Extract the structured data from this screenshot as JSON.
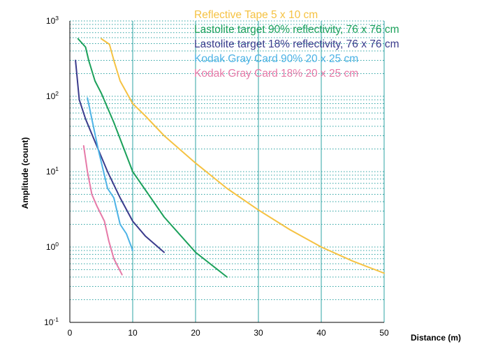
{
  "chart_data": {
    "type": "line",
    "xlabel": "Distance (m)",
    "ylabel": "Amplitude (count)",
    "xlim": [
      0,
      50
    ],
    "ylim": [
      0.1,
      1000
    ],
    "y_scale": "log",
    "x_ticks": [
      "0",
      "10",
      "20",
      "30",
      "40",
      "50"
    ],
    "y_ticks": [
      {
        "base": "10",
        "exp": "-1"
      },
      {
        "base": "10",
        "exp": "0"
      },
      {
        "base": "10",
        "exp": "1"
      },
      {
        "base": "10",
        "exp": "2"
      },
      {
        "base": "10",
        "exp": "3"
      }
    ],
    "grid": "dotted teal, log minor horizontal lines, vertical lines at 10-unit ticks",
    "grid_color": "#2ea3a3",
    "legend_position": "top-right",
    "series": [
      {
        "name": "Reflective Tape 5 x 10 cm",
        "color": "#f5c242",
        "points": [
          [
            5,
            580
          ],
          [
            6.3,
            490
          ],
          [
            7,
            300
          ],
          [
            8,
            160
          ],
          [
            10,
            80
          ],
          [
            12,
            55
          ],
          [
            15,
            30
          ],
          [
            20,
            13
          ],
          [
            25,
            6
          ],
          [
            30,
            3.1
          ],
          [
            35,
            1.7
          ],
          [
            40,
            1.0
          ],
          [
            45,
            0.65
          ],
          [
            50,
            0.45
          ]
        ]
      },
      {
        "name": "Lastolite target 90% reflectivity, 76 x 76 cm",
        "color": "#1aa05a",
        "points": [
          [
            1.3,
            580
          ],
          [
            2.5,
            450
          ],
          [
            3,
            300
          ],
          [
            4,
            160
          ],
          [
            5,
            110
          ],
          [
            7,
            45
          ],
          [
            10,
            10
          ],
          [
            15,
            2.5
          ],
          [
            20,
            0.85
          ],
          [
            25,
            0.4
          ]
        ]
      },
      {
        "name": "Lastolite target 18% reflectivity, 76 x 76 cm",
        "color": "#3a3b8c",
        "points": [
          [
            0.9,
            300
          ],
          [
            1.5,
            90
          ],
          [
            2.5,
            50
          ],
          [
            4,
            25
          ],
          [
            6,
            10
          ],
          [
            8,
            4.5
          ],
          [
            10,
            2.2
          ],
          [
            12,
            1.4
          ],
          [
            15,
            0.85
          ]
        ]
      },
      {
        "name": "Kodak Gray Card 90% 20 x 25 cm",
        "color": "#4db3e6",
        "points": [
          [
            2.8,
            95
          ],
          [
            3.5,
            50
          ],
          [
            4.5,
            20
          ],
          [
            6,
            6
          ],
          [
            7,
            4.5
          ],
          [
            8,
            2
          ],
          [
            9,
            1.5
          ],
          [
            10,
            0.9
          ]
        ]
      },
      {
        "name": "Kodak Gray Card 18% 20 x 25 cm",
        "color": "#e67aa8",
        "points": [
          [
            2.2,
            22
          ],
          [
            2.8,
            10
          ],
          [
            3.5,
            5
          ],
          [
            4.3,
            3.5
          ],
          [
            5.5,
            2.2
          ],
          [
            6.2,
            1.2
          ],
          [
            7,
            0.7
          ],
          [
            8.3,
            0.43
          ]
        ]
      }
    ]
  }
}
